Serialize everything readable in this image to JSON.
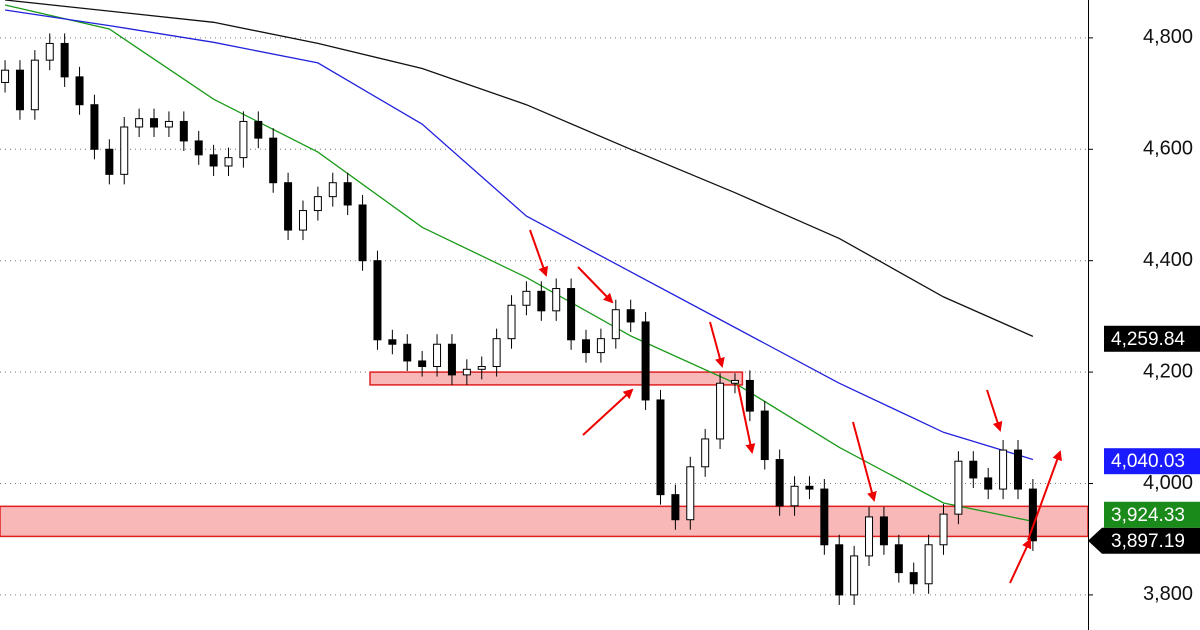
{
  "chart_data": {
    "type": "candlestick",
    "xlim": [
      -0.34,
      72.7
    ],
    "ylim": [
      3737,
      4868
    ],
    "yticks": [
      {
        "value": 3800,
        "label": "3,800"
      },
      {
        "value": 4000,
        "label": "4,000"
      },
      {
        "value": 4200,
        "label": "4,200"
      },
      {
        "value": 4400,
        "label": "4,400"
      },
      {
        "value": 4600,
        "label": "4,600"
      },
      {
        "value": 4800,
        "label": "4,800"
      }
    ],
    "grid": true,
    "up_color": "#ffffff",
    "down_color": "#000000",
    "ohlc": [
      [
        4720,
        4760,
        4702,
        4742
      ],
      [
        4742,
        4760,
        4653,
        4671
      ],
      [
        4671,
        4778,
        4653,
        4760
      ],
      [
        4760,
        4808,
        4742,
        4790
      ],
      [
        4790,
        4808,
        4712,
        4730
      ],
      [
        4730,
        4748,
        4662,
        4680
      ],
      [
        4680,
        4698,
        4582,
        4600
      ],
      [
        4600,
        4618,
        4537,
        4555
      ],
      [
        4555,
        4658,
        4537,
        4640
      ],
      [
        4640,
        4673,
        4622,
        4655
      ],
      [
        4655,
        4673,
        4622,
        4640
      ],
      [
        4640,
        4668,
        4622,
        4650
      ],
      [
        4650,
        4668,
        4597,
        4615
      ],
      [
        4615,
        4633,
        4572,
        4590
      ],
      [
        4590,
        4608,
        4552,
        4570
      ],
      [
        4570,
        4603,
        4552,
        4585
      ],
      [
        4585,
        4668,
        4567,
        4650
      ],
      [
        4650,
        4668,
        4602,
        4620
      ],
      [
        4620,
        4638,
        4522,
        4540
      ],
      [
        4540,
        4558,
        4437,
        4455
      ],
      [
        4455,
        4508,
        4437,
        4490
      ],
      [
        4490,
        4533,
        4472,
        4515
      ],
      [
        4515,
        4558,
        4497,
        4540
      ],
      [
        4540,
        4558,
        4482,
        4500
      ],
      [
        4500,
        4518,
        4382,
        4400
      ],
      [
        4400,
        4418,
        4240,
        4258
      ],
      [
        4258,
        4276,
        4232,
        4250
      ],
      [
        4250,
        4268,
        4202,
        4220
      ],
      [
        4220,
        4238,
        4192,
        4210
      ],
      [
        4210,
        4268,
        4192,
        4250
      ],
      [
        4250,
        4268,
        4177,
        4195
      ],
      [
        4195,
        4223,
        4177,
        4205
      ],
      [
        4205,
        4228,
        4187,
        4210
      ],
      [
        4210,
        4278,
        4192,
        4260
      ],
      [
        4260,
        4338,
        4242,
        4320
      ],
      [
        4320,
        4363,
        4302,
        4345
      ],
      [
        4345,
        4363,
        4292,
        4310
      ],
      [
        4310,
        4368,
        4292,
        4350
      ],
      [
        4350,
        4368,
        4240,
        4258
      ],
      [
        4258,
        4276,
        4217,
        4235
      ],
      [
        4235,
        4278,
        4217,
        4260
      ],
      [
        4260,
        4330,
        4242,
        4312
      ],
      [
        4312,
        4330,
        4272,
        4290
      ],
      [
        4290,
        4308,
        4132,
        4150
      ],
      [
        4150,
        4168,
        3962,
        3980
      ],
      [
        3980,
        3998,
        3917,
        3935
      ],
      [
        3935,
        4048,
        3917,
        4030
      ],
      [
        4030,
        4098,
        4012,
        4080
      ],
      [
        4080,
        4198,
        4062,
        4180
      ],
      [
        4180,
        4198,
        4162,
        4185
      ],
      [
        4185,
        4203,
        4112,
        4130
      ],
      [
        4130,
        4148,
        4025,
        4043
      ],
      [
        4043,
        4061,
        3942,
        3960
      ],
      [
        3960,
        4013,
        3942,
        3995
      ],
      [
        3995,
        4013,
        3972,
        3990
      ],
      [
        3990,
        4008,
        3872,
        3890
      ],
      [
        3890,
        3908,
        3782,
        3800
      ],
      [
        3800,
        3888,
        3782,
        3870
      ],
      [
        3870,
        3958,
        3852,
        3940
      ],
      [
        3940,
        3958,
        3872,
        3890
      ],
      [
        3890,
        3908,
        3822,
        3840
      ],
      [
        3840,
        3858,
        3802,
        3820
      ],
      [
        3820,
        3908,
        3802,
        3890
      ],
      [
        3890,
        3963,
        3872,
        3945
      ],
      [
        3945,
        4058,
        3927,
        4040
      ],
      [
        4040,
        4058,
        3992,
        4010
      ],
      [
        4010,
        4028,
        3972,
        3990
      ],
      [
        3990,
        4078,
        3972,
        4060
      ],
      [
        4060,
        4078,
        3972,
        3990
      ],
      [
        3990,
        4008,
        3879,
        3897.19
      ]
    ],
    "x": [
      0,
      7,
      14,
      21,
      28,
      35,
      42,
      49,
      56,
      63,
      69
    ],
    "series": [
      {
        "color": "#1a9a1a",
        "values": [
          4859,
          4816,
          4690,
          4595,
          4460,
          4370,
          4265,
          4180,
          4065,
          3965,
          3932
        ]
      },
      {
        "color": "#2222dd",
        "values": [
          4850,
          4822,
          4792,
          4755,
          4645,
          4480,
          4380,
          4280,
          4180,
          4092,
          4043
        ]
      },
      {
        "color": "#111111",
        "values": [
          4868,
          4848,
          4828,
          4790,
          4745,
          4680,
          4600,
          4522,
          4440,
          4335,
          4264
        ]
      }
    ],
    "zones": [
      {
        "color": "#f9b8b8",
        "border": "#e02020",
        "xlim": [
          24.5,
          49.5
        ],
        "ylim": [
          4177,
          4200
        ]
      },
      {
        "color": "#f9b8b8",
        "border": "#e02020",
        "ylim": [
          3905,
          3959
        ]
      }
    ],
    "price_labels": [
      {
        "value": 4259.84,
        "label": "4,259.84",
        "color": "#000000"
      },
      {
        "value": 4040.03,
        "label": "4,040.03",
        "color": "#1a1aff"
      },
      {
        "value": 3924.33,
        "label": "3,924.33",
        "color": "#1a8a1a"
      },
      {
        "value": 3897.19,
        "label": "3,897.19",
        "color": "#000000"
      }
    ]
  }
}
